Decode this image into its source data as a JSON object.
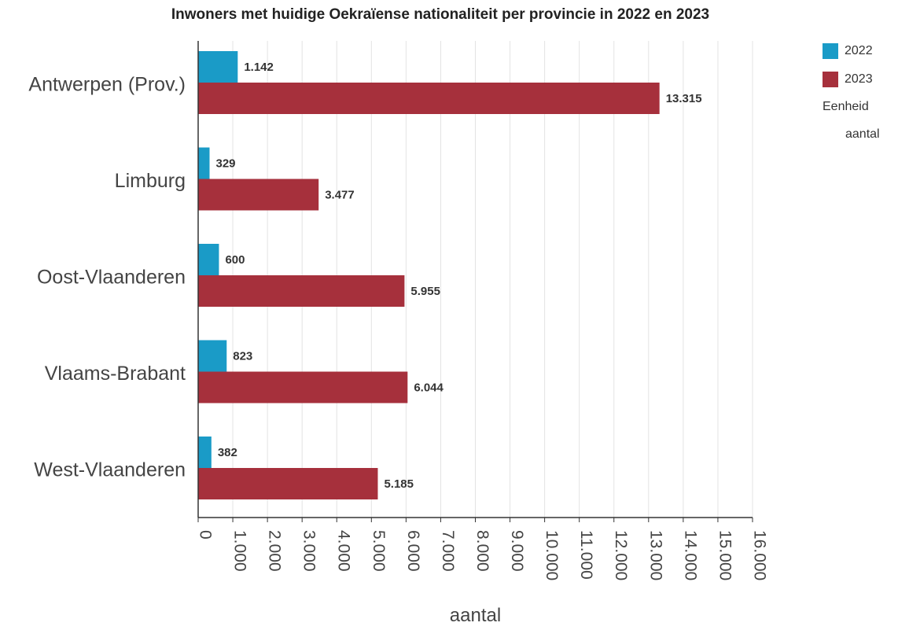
{
  "chart_data": {
    "type": "bar",
    "orientation": "horizontal",
    "title": "Inwoners met huidige Oekraïense nationaliteit per provincie in 2022 en 2023",
    "xlabel": "aantal",
    "ylabel": "",
    "categories": [
      "Antwerpen (Prov.)",
      "Limburg",
      "Oost-Vlaanderen",
      "Vlaams-Brabant",
      "West-Vlaanderen"
    ],
    "series": [
      {
        "name": "2022",
        "color": "#1a9bc7",
        "values": [
          1142,
          329,
          600,
          823,
          382
        ],
        "labels": [
          "1.142",
          "329",
          "600",
          "823",
          "382"
        ]
      },
      {
        "name": "2023",
        "color": "#a6303c",
        "values": [
          13315,
          3477,
          5955,
          6044,
          5185
        ],
        "labels": [
          "13.315",
          "3.477",
          "5.955",
          "6.044",
          "5.185"
        ]
      }
    ],
    "xlim": [
      0,
      16000
    ],
    "xticks": [
      0,
      1000,
      2000,
      3000,
      4000,
      5000,
      6000,
      7000,
      8000,
      9000,
      10000,
      11000,
      12000,
      13000,
      14000,
      15000,
      16000
    ],
    "xtick_labels": [
      "0",
      "1.000",
      "2.000",
      "3.000",
      "4.000",
      "5.000",
      "6.000",
      "7.000",
      "8.000",
      "9.000",
      "10.000",
      "11.000",
      "12.000",
      "13.000",
      "14.000",
      "15.000",
      "16.000"
    ],
    "grid": "vertical",
    "legend": {
      "position": "top-right",
      "unit_title": "Eenheid",
      "unit_value": "aantal"
    }
  }
}
